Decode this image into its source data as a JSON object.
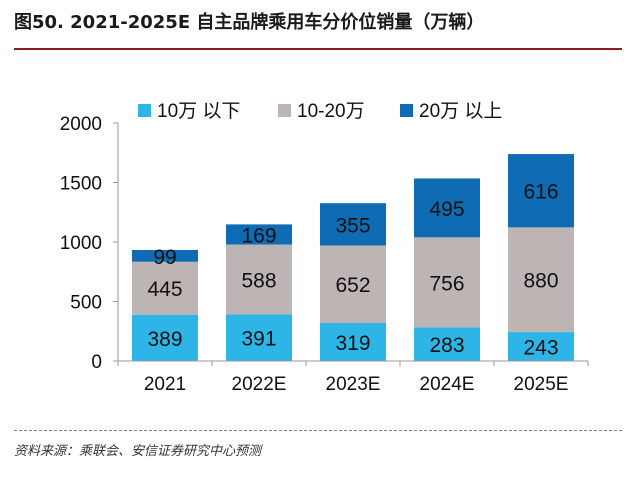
{
  "title": "图50. 2021-2025E 自主品牌乘用车分价位销量（万辆）",
  "source": "资料来源：乘联会、安信证券研究中心预测",
  "colors": {
    "low": "#2eb5e8",
    "mid": "#bdb4b4",
    "high": "#0f6cb4",
    "title_rule": "#8c1d1d"
  },
  "chart_data": {
    "type": "bar",
    "stacked": true,
    "title": "",
    "xlabel": "",
    "ylabel": "",
    "categories": [
      "2021",
      "2022E",
      "2023E",
      "2024E",
      "2025E"
    ],
    "series": [
      {
        "name": "10万 以下",
        "values": [
          389,
          391,
          319,
          283,
          243
        ]
      },
      {
        "name": "10-20万",
        "values": [
          445,
          588,
          652,
          756,
          880
        ]
      },
      {
        "name": "20万 以上",
        "values": [
          99,
          169,
          355,
          495,
          616
        ]
      }
    ],
    "ylim": [
      0,
      2000
    ],
    "yticks": [
      0,
      500,
      1000,
      1500,
      2000
    ],
    "legend_position": "top",
    "grid": false
  }
}
